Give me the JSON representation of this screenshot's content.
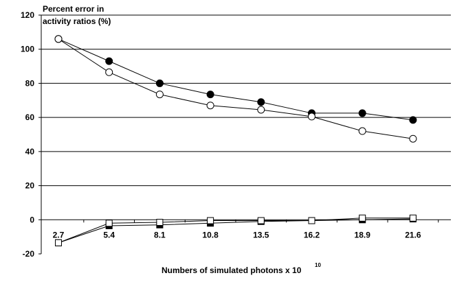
{
  "chart_data": {
    "type": "line",
    "title": "",
    "ylabel_line1": "Percent error in",
    "ylabel_line2": "activity ratios (%)",
    "xlabel": "Numbers of simulated photons x 10",
    "xlabel_exponent": "10",
    "categories": [
      "2.7",
      "5.4",
      "8.1",
      "10.8",
      "13.5",
      "16.2",
      "18.9",
      "21.6"
    ],
    "ylim": [
      -20,
      120
    ],
    "yticks": [
      "-20",
      "0",
      "20",
      "40",
      "60",
      "80",
      "100",
      "120"
    ],
    "grid": "horizontal",
    "series": [
      {
        "marker": "filled-circle",
        "values": [
          106,
          93,
          80,
          73.5,
          69,
          62.5,
          62.5,
          58.5
        ]
      },
      {
        "marker": "open-circle",
        "values": [
          106,
          86.5,
          73.5,
          67,
          64.5,
          60.5,
          52,
          47.5
        ]
      },
      {
        "marker": "filled-square",
        "values": [
          -13.5,
          -3.5,
          -3,
          -2,
          -1,
          -0.5,
          0,
          0.5
        ]
      },
      {
        "marker": "open-square",
        "values": [
          -13.5,
          -2,
          -1.5,
          -0.5,
          -0.5,
          -0.5,
          1,
          1
        ]
      }
    ]
  }
}
